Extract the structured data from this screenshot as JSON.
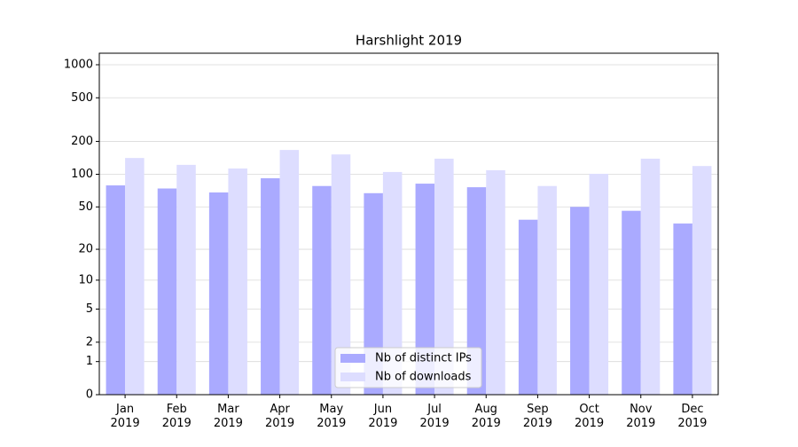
{
  "chart_data": {
    "type": "bar",
    "title": "Harshlight 2019",
    "categories": [
      "Jan\n2019",
      "Feb\n2019",
      "Mar\n2019",
      "Apr\n2019",
      "May\n2019",
      "Jun\n2019",
      "Jul\n2019",
      "Aug\n2019",
      "Sep\n2019",
      "Oct\n2019",
      "Nov\n2019",
      "Dec\n2019"
    ],
    "series": [
      {
        "name": "Nb of distinct IPs",
        "color": "#aaaaff",
        "values": [
          79,
          74,
          68,
          92,
          78,
          67,
          82,
          76,
          38,
          50,
          46,
          35
        ]
      },
      {
        "name": "Nb of downloads",
        "color": "#ddddff",
        "values": [
          141,
          122,
          113,
          167,
          152,
          105,
          139,
          109,
          78,
          101,
          139,
          119
        ]
      }
    ],
    "yscale": "log1p",
    "ylim": [
      0,
      1273
    ],
    "yticks": [
      0,
      1,
      2,
      5,
      10,
      20,
      50,
      100,
      200,
      500,
      1000
    ],
    "grid": true,
    "legend": "lower center"
  }
}
